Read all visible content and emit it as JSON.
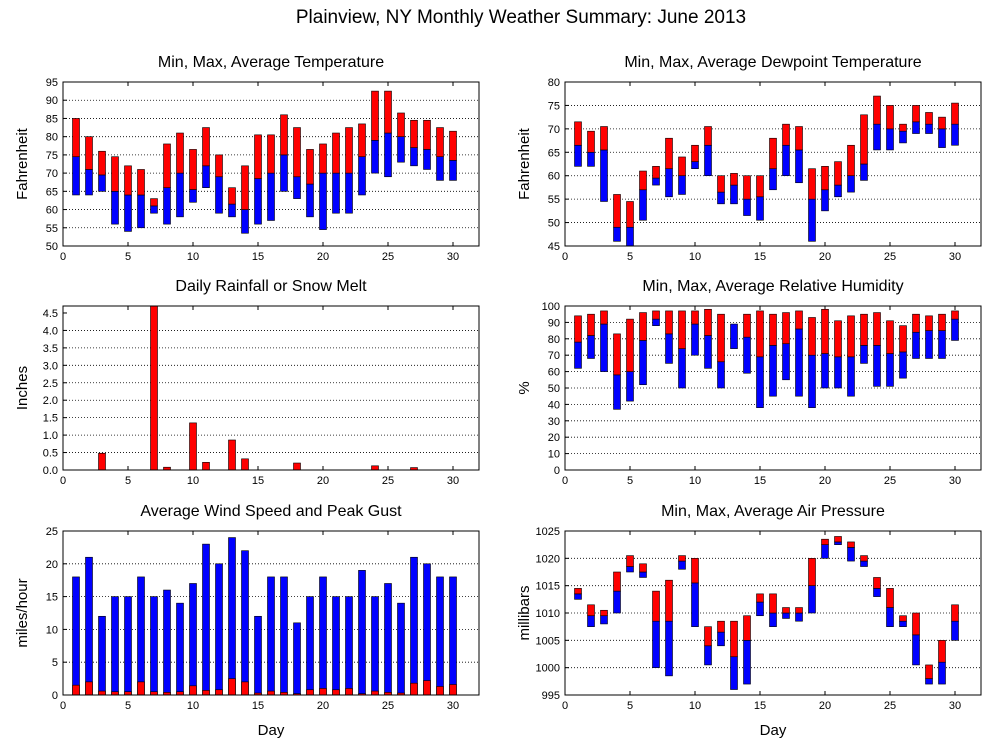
{
  "page": {
    "title": "Plainview, NY Monthly Weather Summary: June 2013"
  },
  "colors": {
    "upper": "#ff0000",
    "lower": "#0000ff",
    "grid": "#000000"
  },
  "chart_data": [
    {
      "id": "temperature",
      "type": "bar",
      "title": "Min, Max, Average Temperature",
      "xlabel": "",
      "ylabel": "Fahrenheit",
      "xlim": [
        0,
        32
      ],
      "ylim": [
        50,
        95
      ],
      "xticks": [
        0,
        5,
        10,
        15,
        20,
        25,
        30
      ],
      "yticks": [
        50,
        55,
        60,
        65,
        70,
        75,
        80,
        85,
        90,
        95
      ],
      "grid": true,
      "days": [
        1,
        2,
        3,
        4,
        5,
        6,
        7,
        8,
        9,
        10,
        11,
        12,
        13,
        14,
        15,
        16,
        17,
        18,
        19,
        20,
        21,
        22,
        23,
        24,
        25,
        26,
        27,
        28,
        29,
        30
      ],
      "series": [
        {
          "name": "Min",
          "values": [
            64,
            64,
            65,
            56,
            54,
            55,
            59,
            56,
            58,
            62,
            66,
            59,
            58,
            53.5,
            56,
            57,
            65,
            63,
            58,
            54.5,
            59,
            59,
            64,
            70,
            69,
            73,
            72,
            71,
            68,
            68
          ]
        },
        {
          "name": "Average",
          "values": [
            74.5,
            71,
            69.5,
            65,
            64,
            64,
            61,
            66,
            70,
            65.5,
            72,
            69,
            61.5,
            60,
            68.5,
            70,
            75,
            69,
            67,
            70,
            70,
            70,
            74.5,
            79,
            81,
            80,
            77,
            76.5,
            74.5,
            73.5
          ]
        },
        {
          "name": "Max",
          "values": [
            85,
            80,
            76,
            74.5,
            72,
            71,
            63,
            78,
            81,
            76.5,
            82.5,
            75,
            66,
            72,
            80.5,
            80.5,
            86,
            82.5,
            76.5,
            78,
            81,
            82.5,
            83.5,
            92.5,
            92.5,
            86.5,
            84.5,
            84.5,
            82.5,
            81.5
          ]
        }
      ]
    },
    {
      "id": "dewpoint",
      "type": "bar",
      "title": "Min, Max, Average Dewpoint Temperature",
      "xlabel": "",
      "ylabel": "Fahrenheit",
      "xlim": [
        0,
        32
      ],
      "ylim": [
        45,
        80
      ],
      "xticks": [
        0,
        5,
        10,
        15,
        20,
        25,
        30
      ],
      "yticks": [
        45,
        50,
        55,
        60,
        65,
        70,
        75,
        80
      ],
      "grid": true,
      "days": [
        1,
        2,
        3,
        4,
        5,
        6,
        7,
        8,
        9,
        10,
        11,
        12,
        13,
        14,
        15,
        16,
        17,
        18,
        19,
        20,
        21,
        22,
        23,
        24,
        25,
        26,
        27,
        28,
        29,
        30
      ],
      "series": [
        {
          "name": "Min",
          "values": [
            62,
            62,
            54.5,
            46,
            45,
            50.5,
            58,
            55.5,
            56,
            61.5,
            60,
            54,
            54,
            51.5,
            50.5,
            57,
            60,
            58.5,
            46,
            52.5,
            55.5,
            56.5,
            59,
            65.5,
            65.5,
            67,
            69,
            69,
            66,
            66.5
          ]
        },
        {
          "name": "Average",
          "values": [
            66.5,
            65,
            65.5,
            49,
            49,
            57,
            59.5,
            61.5,
            60,
            63,
            66.5,
            56.5,
            58,
            55,
            55.5,
            61.5,
            66.5,
            65.5,
            55,
            57,
            58,
            60,
            62.5,
            71,
            70,
            69.5,
            71.5,
            71,
            70,
            71
          ]
        },
        {
          "name": "Max",
          "values": [
            71.5,
            69.5,
            70.5,
            56,
            54.5,
            61,
            62,
            68,
            64,
            66.5,
            70.5,
            60,
            60.5,
            60,
            60,
            68,
            71,
            70.5,
            61.5,
            62,
            63,
            66.5,
            73,
            77,
            75,
            71,
            75,
            73.5,
            72.5,
            75.5
          ]
        }
      ]
    },
    {
      "id": "rainfall",
      "type": "bar",
      "title": "Daily Rainfall or Snow Melt",
      "xlabel": "",
      "ylabel": "Inches",
      "xlim": [
        0,
        32
      ],
      "ylim": [
        0,
        4.7
      ],
      "xticks": [
        0,
        5,
        10,
        15,
        20,
        25,
        30
      ],
      "yticks": [
        0.0,
        0.5,
        1.0,
        1.5,
        2.0,
        2.5,
        3.0,
        3.5,
        4.0,
        4.5
      ],
      "ytick_labels": [
        "0.0",
        "0.5",
        "1.0",
        "1.5",
        "2.0",
        "2.5",
        "3.0",
        "3.5",
        "4.0",
        "4.5"
      ],
      "grid": true,
      "days": [
        3,
        7,
        8,
        10,
        11,
        13,
        14,
        18,
        24,
        27
      ],
      "series": [
        {
          "name": "Rainfall",
          "values": [
            0.48,
            4.7,
            0.08,
            1.35,
            0.22,
            0.86,
            0.32,
            0.2,
            0.12,
            0.07
          ]
        }
      ]
    },
    {
      "id": "humidity",
      "type": "bar",
      "title": "Min, Max, Average Relative Humidity",
      "xlabel": "",
      "ylabel": "%",
      "xlim": [
        0,
        32
      ],
      "ylim": [
        0,
        100
      ],
      "xticks": [
        0,
        5,
        10,
        15,
        20,
        25,
        30
      ],
      "yticks": [
        0,
        10,
        20,
        30,
        40,
        50,
        60,
        70,
        80,
        90,
        100
      ],
      "grid": true,
      "days": [
        1,
        2,
        3,
        4,
        5,
        6,
        7,
        8,
        9,
        10,
        11,
        12,
        13,
        14,
        15,
        16,
        17,
        18,
        19,
        20,
        21,
        22,
        23,
        24,
        25,
        26,
        27,
        28,
        29,
        30
      ],
      "series": [
        {
          "name": "Min",
          "values": [
            62,
            68,
            60,
            37,
            42,
            52,
            88,
            65,
            50,
            70,
            62,
            50,
            74,
            59,
            38,
            45,
            55,
            45,
            38,
            50,
            50,
            45,
            65,
            51,
            51,
            56,
            68,
            68,
            68,
            79
          ]
        },
        {
          "name": "Average",
          "values": [
            78,
            82,
            89,
            58,
            60,
            79,
            92,
            83,
            74,
            89,
            82,
            66,
            89,
            81,
            69,
            76,
            77,
            86,
            70,
            71,
            69,
            69,
            76,
            76,
            71,
            72,
            84,
            85,
            85,
            92
          ]
        },
        {
          "name": "Max",
          "values": [
            94,
            95,
            97,
            83,
            92,
            96,
            97,
            97,
            97,
            97,
            98,
            95,
            88,
            95,
            97,
            95,
            96,
            97,
            93,
            98,
            91,
            94,
            95,
            96,
            91,
            88,
            95,
            94,
            95,
            97
          ]
        }
      ]
    },
    {
      "id": "wind",
      "type": "bar",
      "title": "Average Wind Speed and Peak Gust",
      "xlabel": "Day",
      "ylabel": "miles/hour",
      "xlim": [
        0,
        32
      ],
      "ylim": [
        0,
        25
      ],
      "xticks": [
        0,
        5,
        10,
        15,
        20,
        25,
        30
      ],
      "yticks": [
        0,
        5,
        10,
        15,
        20,
        25
      ],
      "grid": true,
      "days": [
        1,
        2,
        3,
        4,
        5,
        6,
        7,
        8,
        9,
        10,
        11,
        12,
        13,
        14,
        15,
        16,
        17,
        18,
        19,
        20,
        21,
        22,
        23,
        24,
        25,
        26,
        27,
        28,
        29,
        30
      ],
      "series": [
        {
          "name": "Peak Gust",
          "values": [
            18,
            21,
            12,
            15,
            15,
            18,
            15,
            16,
            14,
            17,
            23,
            20,
            24,
            22,
            12,
            18,
            18,
            11,
            15,
            18,
            15,
            15,
            19,
            15,
            17,
            14,
            21,
            20,
            18,
            18
          ]
        },
        {
          "name": "Average Wind Speed",
          "values": [
            1.5,
            2,
            0.6,
            0.5,
            0.5,
            2,
            0.5,
            0.4,
            0.5,
            1.4,
            0.7,
            0.8,
            2.5,
            2,
            0.3,
            0.6,
            0.4,
            0.2,
            0.8,
            1,
            0.8,
            1,
            0.2,
            0.6,
            0.4,
            0.3,
            1.8,
            2.2,
            1.3,
            1.6
          ]
        }
      ]
    },
    {
      "id": "pressure",
      "type": "bar",
      "title": "Min, Max, Average Air Pressure",
      "xlabel": "Day",
      "ylabel": "millibars",
      "xlim": [
        0,
        32
      ],
      "ylim": [
        995,
        1025
      ],
      "xticks": [
        0,
        5,
        10,
        15,
        20,
        25,
        30
      ],
      "yticks": [
        995,
        1000,
        1005,
        1010,
        1015,
        1020,
        1025
      ],
      "grid": true,
      "days": [
        1,
        2,
        3,
        4,
        5,
        6,
        7,
        8,
        9,
        10,
        11,
        12,
        13,
        14,
        15,
        16,
        17,
        18,
        19,
        20,
        21,
        22,
        23,
        24,
        25,
        26,
        27,
        28,
        29,
        30
      ],
      "series": [
        {
          "name": "Min",
          "values": [
            1012.5,
            1007.5,
            1008,
            1010,
            1017.5,
            1016.5,
            1000,
            998.5,
            1018,
            1007.5,
            1000.5,
            1004,
            996,
            997,
            1009.5,
            1007.5,
            1009,
            1008.5,
            1010,
            1020,
            1022.5,
            1019.5,
            1018.5,
            1013,
            1007.5,
            1007.5,
            1000.5,
            997,
            997,
            1005
          ]
        },
        {
          "name": "Average",
          "values": [
            1013.5,
            1009.5,
            1009.5,
            1014,
            1018.5,
            1017.5,
            1008.5,
            1008.5,
            1019.5,
            1015.5,
            1004,
            1006.5,
            1002,
            1005,
            1012,
            1010,
            1010,
            1010,
            1015,
            1022.5,
            1023,
            1022,
            1019.5,
            1014.5,
            1011,
            1008.5,
            1006,
            998,
            1001,
            1008.5
          ]
        },
        {
          "name": "Max",
          "values": [
            1014.5,
            1011.5,
            1010.5,
            1017.5,
            1020.5,
            1019,
            1014,
            1016,
            1020.5,
            1020,
            1007.5,
            1008.5,
            1008.5,
            1009.5,
            1013.5,
            1013.5,
            1011,
            1011,
            1020,
            1023.5,
            1024,
            1023,
            1020.5,
            1016.5,
            1014.5,
            1009.5,
            1010,
            1000.5,
            1005,
            1011.5
          ]
        }
      ]
    }
  ]
}
